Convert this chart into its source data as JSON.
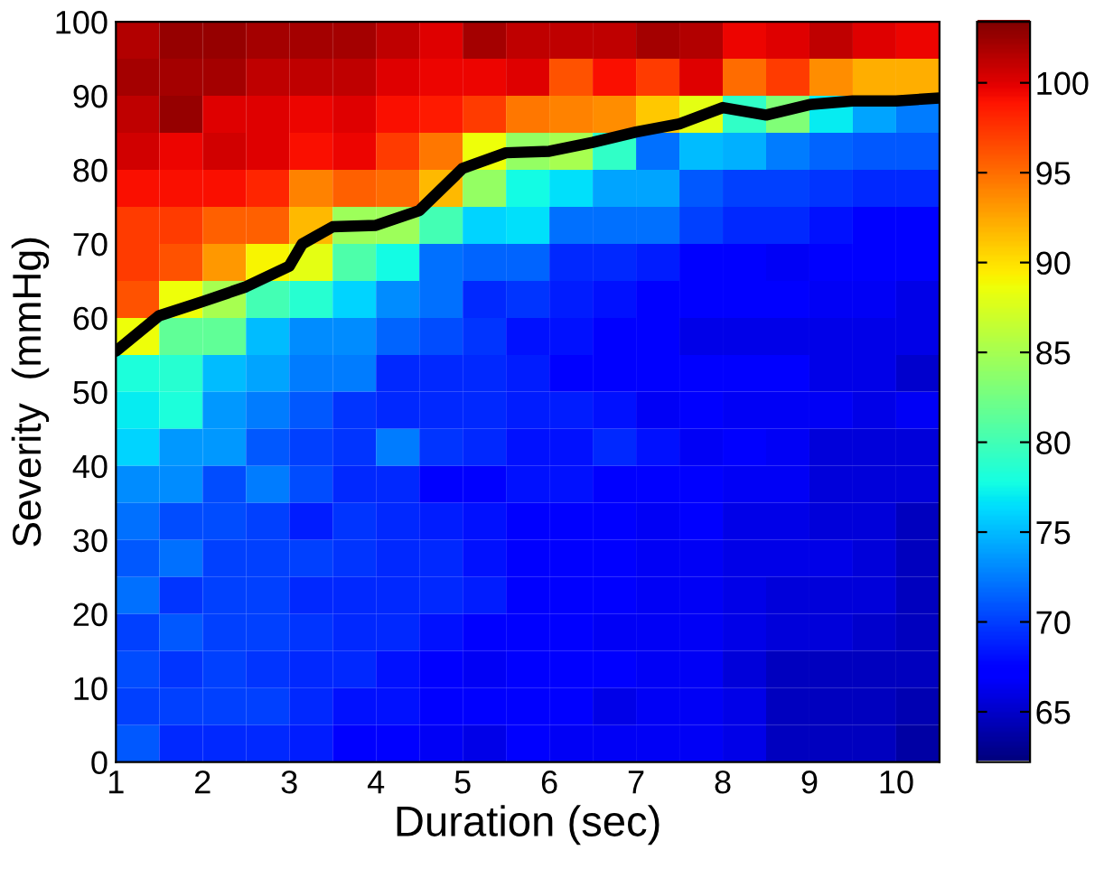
{
  "chart_data": {
    "type": "heatmap",
    "xlabel": "Duration (sec)",
    "ylabel": "Severity  (mmHg)",
    "x": [
      1.25,
      1.75,
      2.25,
      2.75,
      3.25,
      3.75,
      4.25,
      4.75,
      5.25,
      5.75,
      6.25,
      6.75,
      7.25,
      7.75,
      8.25,
      8.75,
      9.25,
      9.75,
      10.25
    ],
    "y": [
      97.5,
      92.5,
      87.5,
      82.5,
      77.5,
      72.5,
      67.5,
      62.5,
      57.5,
      52.5,
      47.5,
      42.5,
      37.5,
      32.5,
      27.5,
      22.5,
      17.5,
      12.5,
      7.5,
      2.5
    ],
    "cells": [
      [
        101.5,
        102.5,
        102.5,
        102,
        102,
        102,
        101,
        100,
        102,
        101,
        101,
        101,
        102,
        101.5,
        99.5,
        100,
        101,
        100,
        99.5
      ],
      [
        102,
        102,
        102,
        101,
        101,
        101,
        100,
        99.5,
        99.5,
        100,
        96,
        99,
        97,
        100,
        95,
        97,
        93.5,
        92,
        92
      ],
      [
        101,
        102.5,
        100,
        100,
        99.5,
        100,
        99,
        98.5,
        97,
        94.5,
        94,
        93.5,
        91,
        88,
        79,
        83,
        77,
        74,
        72.5
      ],
      [
        100.5,
        99.5,
        100.5,
        100,
        99,
        99.5,
        97,
        94.5,
        88.5,
        84,
        85,
        79,
        72,
        75,
        74.5,
        72.5,
        71.5,
        71,
        71
      ],
      [
        99,
        99,
        99,
        98,
        94,
        95.5,
        95,
        91.5,
        84,
        77.5,
        76.5,
        74,
        74,
        71,
        70,
        70,
        69.5,
        69,
        69
      ],
      [
        97,
        97,
        95.5,
        95.5,
        91.5,
        84.5,
        84.5,
        80,
        76,
        76.5,
        72,
        72,
        72,
        70,
        69,
        69,
        68,
        67.5,
        67
      ],
      [
        97,
        96,
        93,
        89,
        88,
        80.5,
        77.5,
        72,
        71.5,
        71.5,
        69,
        69,
        68.5,
        67.5,
        67,
        66.5,
        67,
        67,
        67
      ],
      [
        96,
        88.5,
        85,
        80,
        78.5,
        76,
        73,
        72,
        69,
        69.5,
        68.5,
        68,
        67,
        67,
        67.5,
        67,
        66.5,
        66.5,
        66
      ],
      [
        88.5,
        81.5,
        81.5,
        75,
        73,
        73,
        71.5,
        70.5,
        69.5,
        68,
        68,
        67.5,
        67.5,
        66,
        66,
        66,
        66,
        66,
        66
      ],
      [
        78,
        78.5,
        75,
        74,
        72.5,
        72.5,
        69,
        69,
        69,
        68.5,
        67.5,
        67.5,
        67,
        67,
        67,
        67,
        66,
        66,
        65
      ],
      [
        77,
        78,
        73.5,
        72.5,
        71,
        69.5,
        69,
        69,
        69,
        68.5,
        68.5,
        68,
        66.5,
        67,
        66.5,
        66.5,
        66.5,
        66,
        66.5
      ],
      [
        76,
        73.5,
        73.5,
        71,
        70,
        69.5,
        72.5,
        69.5,
        69,
        68,
        68,
        69,
        68,
        66.5,
        67.5,
        66.5,
        65.5,
        65.5,
        65.5
      ],
      [
        73,
        73,
        70.5,
        72.5,
        70.5,
        69,
        69,
        67.5,
        67.5,
        68,
        68,
        67.5,
        67,
        67,
        66.5,
        66.5,
        65.5,
        65.5,
        65.5
      ],
      [
        72,
        70.5,
        70.5,
        70,
        68.5,
        69.5,
        69,
        68.5,
        68,
        67.5,
        67,
        67,
        66.5,
        67,
        66,
        66,
        65.5,
        65.5,
        64.5
      ],
      [
        71,
        72,
        70,
        70,
        70,
        69.5,
        69,
        69,
        68,
        67.5,
        67,
        67,
        66.5,
        66.5,
        66,
        66,
        66,
        65.5,
        64.5
      ],
      [
        72,
        69.5,
        70,
        70,
        69,
        69,
        69,
        69,
        68.5,
        67,
        67,
        67,
        66.5,
        66.5,
        66,
        65.5,
        65.5,
        65.5,
        64.5
      ],
      [
        70,
        71,
        70,
        70,
        69.5,
        69,
        69,
        68,
        67.5,
        67,
        67,
        66.5,
        66.5,
        66.5,
        66,
        65.5,
        65.5,
        65,
        64.5
      ],
      [
        70.5,
        69.5,
        70,
        69.5,
        69,
        69,
        68,
        67,
        66.5,
        67.5,
        67,
        67,
        66.5,
        66.5,
        65.5,
        64.5,
        64.5,
        64.5,
        64.5
      ],
      [
        70,
        70,
        70,
        70,
        69,
        68,
        68,
        67.5,
        67,
        67.5,
        67,
        66,
        66.5,
        66.5,
        66,
        64.5,
        64.5,
        64.5,
        64
      ],
      [
        71,
        69,
        69,
        69,
        68.5,
        67,
        67,
        66.5,
        66,
        67.5,
        66.5,
        66.5,
        66.5,
        66.5,
        66,
        64.5,
        64.5,
        64.5,
        63.5
      ]
    ],
    "clim": [
      62.2,
      103.4
    ],
    "cticks": [
      65,
      70,
      75,
      80,
      85,
      90,
      95,
      100
    ],
    "xlim": [
      1,
      10.5
    ],
    "xticks": [
      1,
      2,
      3,
      4,
      5,
      6,
      7,
      8,
      9,
      10
    ],
    "ylim": [
      0,
      100
    ],
    "yticks": [
      0,
      10,
      20,
      30,
      40,
      50,
      60,
      70,
      80,
      90,
      100
    ],
    "grid": false,
    "series": [
      {
        "type": "line",
        "color": "#000000",
        "x": [
          1,
          1.5,
          2,
          2.5,
          3,
          3.15,
          3.5,
          4,
          4.5,
          5,
          5.5,
          6,
          6.5,
          7,
          7.5,
          8,
          8.5,
          9,
          9.5,
          10,
          10.5
        ],
        "values": [
          55.5,
          60.3,
          62.2,
          64.2,
          67,
          70,
          72.3,
          72.5,
          74.5,
          80.2,
          82.3,
          82.5,
          83.7,
          85.1,
          86.2,
          88.4,
          87.4,
          88.8,
          89.3,
          89.3,
          89.7
        ]
      }
    ]
  }
}
